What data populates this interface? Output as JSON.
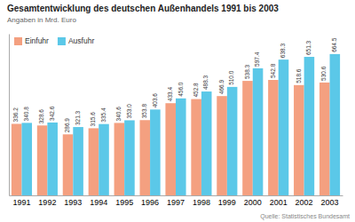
{
  "chart_data": {
    "type": "bar",
    "title": "Gesamtentwicklung des deutschen Außenhandels 1991 bis 2003",
    "subtitle": "Angaben in Mrd. Euro",
    "annotations": [
      "Quelle: Statistisches Bundesamt"
    ],
    "categories": [
      "1991",
      "1992",
      "1993",
      "1994",
      "1995",
      "1996",
      "1997",
      "1998",
      "1999",
      "2000",
      "2001",
      "2002",
      "2003"
    ],
    "series": [
      {
        "name": "Einfuhr",
        "color": "#F4A080",
        "values": [
          336.2,
          328.6,
          286.9,
          315.6,
          340.6,
          353.8,
          433.4,
          452.8,
          466.9,
          538.3,
          542.8,
          518.6,
          530.6
        ]
      },
      {
        "name": "Ausfuhr",
        "color": "#5BC8E8",
        "values": [
          340.8,
          342.6,
          321.3,
          335.4,
          353.0,
          403.6,
          456.0,
          488.3,
          510.0,
          597.4,
          638.3,
          651.3,
          664.5
        ],
        "value_labels": [
          "340.8",
          "342.6",
          "321.3",
          "335.4",
          "353.0",
          "403.6",
          "456.0",
          "488.3",
          "510.0",
          "597.4",
          "638.3",
          "651.3",
          "664.5"
        ]
      }
    ],
    "ylim": [
      0,
      760
    ],
    "yticks": [],
    "grid": false,
    "legend": "upper left",
    "data_labels": true,
    "tick_labels": "x"
  }
}
